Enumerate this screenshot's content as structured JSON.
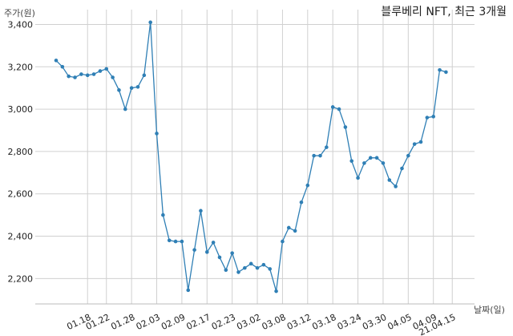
{
  "chart_data": {
    "type": "line",
    "title": "블루베리 NFT, 최근 3개월",
    "xlabel": "날짜(일)",
    "ylabel": "주가(원)",
    "ylim": [
      2080,
      3470
    ],
    "y_ticks": [
      2200,
      2400,
      2600,
      2800,
      3000,
      3200,
      3400
    ],
    "y_tick_labels": [
      "2,200",
      "2,400",
      "2,600",
      "2,800",
      "3,000",
      "3,200",
      "3,400"
    ],
    "x_tick_labels": [
      "01.18",
      "01.22",
      "01.28",
      "02.03",
      "02.09",
      "02.17",
      "02.23",
      "03.02",
      "03.08",
      "03.12",
      "03.18",
      "03.24",
      "03.30",
      "04.05",
      "04.09",
      "21.04.15"
    ],
    "x_tick_index": [
      5,
      8,
      12,
      16,
      20,
      24,
      28,
      32,
      36,
      40,
      44,
      48,
      52,
      56,
      60,
      63
    ],
    "grid": true,
    "line_color": "#2f7fb5",
    "series": [
      {
        "values": [
          3230,
          3200,
          3155,
          3150,
          3165,
          3160,
          3165,
          3180,
          3190,
          3150,
          3090,
          3000,
          3100,
          3105,
          3160,
          3410,
          2885,
          2500,
          2380,
          2375,
          2375,
          2145,
          2335,
          2520,
          2325,
          2370,
          2300,
          2240,
          2320,
          2230,
          2250,
          2270,
          2250,
          2265,
          2245,
          2140,
          2375,
          2440,
          2425,
          2560,
          2640,
          2780,
          2780,
          2820,
          3010,
          3000,
          2915,
          2755,
          2675,
          2745,
          2770,
          2770,
          2745,
          2665,
          2635,
          2720,
          2780,
          2835,
          2845,
          2960,
          2965,
          3185,
          3175
        ]
      }
    ]
  }
}
